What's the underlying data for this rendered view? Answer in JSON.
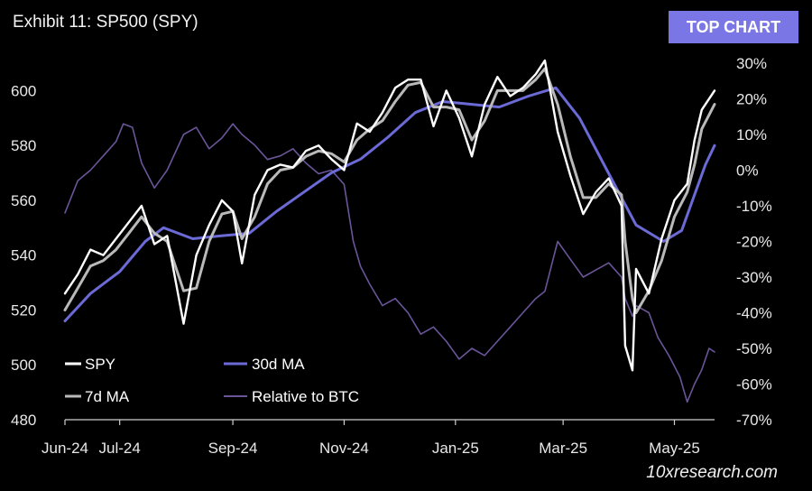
{
  "header": {
    "title": "Exhibit 11: SP500 (SPY)",
    "badge": "TOP CHART",
    "watermark": "10xresearch.com"
  },
  "colors": {
    "background": "#000000",
    "spy": "#ffffff",
    "ma7": "#b9b9b9",
    "ma30": "#6b6ad6",
    "relative_btc": "#6a5599",
    "badge": "#7b76e6"
  },
  "chart_data": {
    "type": "line",
    "x_tick_labels": [
      "Jun-24",
      "Jul-24",
      "Sep-24",
      "Nov-24",
      "Jan-25",
      "Mar-25",
      "May-25"
    ],
    "x_range": [
      "2024-06-01",
      "2025-05-23"
    ],
    "y_left": {
      "ticks": [
        "480",
        "500",
        "520",
        "540",
        "560",
        "580",
        "600"
      ],
      "range": [
        480,
        610
      ]
    },
    "y_right": {
      "ticks": [
        "30%",
        "20%",
        "10%",
        "0%",
        "-10%",
        "-20%",
        "-30%",
        "-40%",
        "-50%",
        "-60%",
        "-70%"
      ],
      "range": [
        -70,
        30
      ]
    },
    "legend": [
      "SPY",
      "30d MA",
      "7d MA",
      "Relative to BTC"
    ],
    "legend_position": "bottom-left",
    "grid": false,
    "series": [
      {
        "name": "SPY",
        "axis": "left",
        "points": [
          [
            "2024-06-01",
            526
          ],
          [
            "2024-06-08",
            533
          ],
          [
            "2024-06-15",
            542
          ],
          [
            "2024-06-22",
            540
          ],
          [
            "2024-06-29",
            546
          ],
          [
            "2024-07-06",
            552
          ],
          [
            "2024-07-13",
            558
          ],
          [
            "2024-07-20",
            544
          ],
          [
            "2024-07-27",
            547
          ],
          [
            "2024-08-05",
            515
          ],
          [
            "2024-08-12",
            540
          ],
          [
            "2024-08-19",
            551
          ],
          [
            "2024-08-26",
            560
          ],
          [
            "2024-09-01",
            556
          ],
          [
            "2024-09-06",
            537
          ],
          [
            "2024-09-13",
            562
          ],
          [
            "2024-09-20",
            571
          ],
          [
            "2024-09-27",
            573
          ],
          [
            "2024-10-04",
            572
          ],
          [
            "2024-10-11",
            578
          ],
          [
            "2024-10-18",
            580
          ],
          [
            "2024-10-25",
            575
          ],
          [
            "2024-11-01",
            571
          ],
          [
            "2024-11-08",
            588
          ],
          [
            "2024-11-15",
            585
          ],
          [
            "2024-11-22",
            592
          ],
          [
            "2024-11-29",
            601
          ],
          [
            "2024-12-06",
            604
          ],
          [
            "2024-12-13",
            604
          ],
          [
            "2024-12-20",
            587
          ],
          [
            "2024-12-27",
            600
          ],
          [
            "2025-01-03",
            590
          ],
          [
            "2025-01-10",
            576
          ],
          [
            "2025-01-17",
            595
          ],
          [
            "2025-01-24",
            605
          ],
          [
            "2025-01-31",
            598
          ],
          [
            "2025-02-07",
            601
          ],
          [
            "2025-02-14",
            606
          ],
          [
            "2025-02-19",
            611
          ],
          [
            "2025-02-26",
            585
          ],
          [
            "2025-03-05",
            569
          ],
          [
            "2025-03-12",
            555
          ],
          [
            "2025-03-19",
            563
          ],
          [
            "2025-03-26",
            568
          ],
          [
            "2025-04-02",
            558
          ],
          [
            "2025-04-04",
            507
          ],
          [
            "2025-04-08",
            498
          ],
          [
            "2025-04-10",
            535
          ],
          [
            "2025-04-17",
            526
          ],
          [
            "2025-04-24",
            546
          ],
          [
            "2025-05-01",
            560
          ],
          [
            "2025-05-08",
            566
          ],
          [
            "2025-05-12",
            582
          ],
          [
            "2025-05-16",
            593
          ],
          [
            "2025-05-23",
            600
          ]
        ]
      },
      {
        "name": "7d MA",
        "axis": "left",
        "points": [
          [
            "2024-06-01",
            520
          ],
          [
            "2024-06-08",
            528
          ],
          [
            "2024-06-15",
            536
          ],
          [
            "2024-06-22",
            538
          ],
          [
            "2024-06-29",
            542
          ],
          [
            "2024-07-06",
            548
          ],
          [
            "2024-07-13",
            554
          ],
          [
            "2024-07-20",
            548
          ],
          [
            "2024-07-27",
            545
          ],
          [
            "2024-08-05",
            527
          ],
          [
            "2024-08-12",
            528
          ],
          [
            "2024-08-19",
            545
          ],
          [
            "2024-08-26",
            555
          ],
          [
            "2024-09-01",
            556
          ],
          [
            "2024-09-06",
            546
          ],
          [
            "2024-09-13",
            554
          ],
          [
            "2024-09-20",
            566
          ],
          [
            "2024-09-27",
            571
          ],
          [
            "2024-10-04",
            572
          ],
          [
            "2024-10-11",
            576
          ],
          [
            "2024-10-18",
            578
          ],
          [
            "2024-10-25",
            577
          ],
          [
            "2024-11-01",
            574
          ],
          [
            "2024-11-08",
            582
          ],
          [
            "2024-11-15",
            586
          ],
          [
            "2024-11-22",
            589
          ],
          [
            "2024-11-29",
            596
          ],
          [
            "2024-12-06",
            602
          ],
          [
            "2024-12-13",
            603
          ],
          [
            "2024-12-20",
            594
          ],
          [
            "2024-12-27",
            594
          ],
          [
            "2025-01-03",
            593
          ],
          [
            "2025-01-10",
            582
          ],
          [
            "2025-01-17",
            589
          ],
          [
            "2025-01-24",
            600
          ],
          [
            "2025-01-31",
            600
          ],
          [
            "2025-02-07",
            600
          ],
          [
            "2025-02-14",
            604
          ],
          [
            "2025-02-19",
            608
          ],
          [
            "2025-02-26",
            595
          ],
          [
            "2025-03-05",
            576
          ],
          [
            "2025-03-12",
            561
          ],
          [
            "2025-03-19",
            561
          ],
          [
            "2025-03-26",
            566
          ],
          [
            "2025-04-02",
            562
          ],
          [
            "2025-04-04",
            545
          ],
          [
            "2025-04-08",
            524
          ],
          [
            "2025-04-10",
            519
          ],
          [
            "2025-04-17",
            527
          ],
          [
            "2025-04-24",
            538
          ],
          [
            "2025-05-01",
            554
          ],
          [
            "2025-05-08",
            563
          ],
          [
            "2025-05-12",
            573
          ],
          [
            "2025-05-16",
            586
          ],
          [
            "2025-05-23",
            595
          ]
        ]
      },
      {
        "name": "30d MA",
        "axis": "left",
        "points": [
          [
            "2024-06-01",
            516
          ],
          [
            "2024-06-15",
            526
          ],
          [
            "2024-07-01",
            534
          ],
          [
            "2024-07-15",
            545
          ],
          [
            "2024-07-25",
            550
          ],
          [
            "2024-08-10",
            546
          ],
          [
            "2024-08-25",
            547
          ],
          [
            "2024-09-10",
            548
          ],
          [
            "2024-09-25",
            556
          ],
          [
            "2024-10-10",
            563
          ],
          [
            "2024-10-25",
            570
          ],
          [
            "2024-11-10",
            575
          ],
          [
            "2024-11-25",
            583
          ],
          [
            "2024-12-10",
            592
          ],
          [
            "2024-12-25",
            596
          ],
          [
            "2025-01-10",
            595
          ],
          [
            "2025-01-25",
            594
          ],
          [
            "2025-02-10",
            598
          ],
          [
            "2025-02-25",
            601
          ],
          [
            "2025-03-10",
            590
          ],
          [
            "2025-03-25",
            571
          ],
          [
            "2025-04-10",
            551
          ],
          [
            "2025-04-25",
            545
          ],
          [
            "2025-05-05",
            549
          ],
          [
            "2025-05-12",
            562
          ],
          [
            "2025-05-18",
            573
          ],
          [
            "2025-05-23",
            580
          ]
        ]
      },
      {
        "name": "Relative to BTC",
        "axis": "right",
        "points": [
          [
            "2024-06-01",
            -12
          ],
          [
            "2024-06-08",
            -3
          ],
          [
            "2024-06-15",
            0
          ],
          [
            "2024-06-22",
            4
          ],
          [
            "2024-06-29",
            8
          ],
          [
            "2024-07-03",
            13
          ],
          [
            "2024-07-08",
            12
          ],
          [
            "2024-07-13",
            2
          ],
          [
            "2024-07-20",
            -5
          ],
          [
            "2024-07-27",
            0
          ],
          [
            "2024-08-05",
            10
          ],
          [
            "2024-08-12",
            12
          ],
          [
            "2024-08-19",
            6
          ],
          [
            "2024-08-26",
            9
          ],
          [
            "2024-09-01",
            13
          ],
          [
            "2024-09-06",
            10
          ],
          [
            "2024-09-13",
            7
          ],
          [
            "2024-09-20",
            3
          ],
          [
            "2024-09-27",
            4
          ],
          [
            "2024-10-04",
            6
          ],
          [
            "2024-10-11",
            2
          ],
          [
            "2024-10-18",
            -1
          ],
          [
            "2024-10-25",
            0
          ],
          [
            "2024-11-01",
            -4
          ],
          [
            "2024-11-06",
            -20
          ],
          [
            "2024-11-10",
            -27
          ],
          [
            "2024-11-15",
            -32
          ],
          [
            "2024-11-22",
            -38
          ],
          [
            "2024-11-29",
            -36
          ],
          [
            "2024-12-06",
            -40
          ],
          [
            "2024-12-13",
            -46
          ],
          [
            "2024-12-20",
            -44
          ],
          [
            "2024-12-27",
            -48
          ],
          [
            "2025-01-03",
            -53
          ],
          [
            "2025-01-10",
            -50
          ],
          [
            "2025-01-17",
            -52
          ],
          [
            "2025-01-24",
            -48
          ],
          [
            "2025-01-31",
            -44
          ],
          [
            "2025-02-07",
            -40
          ],
          [
            "2025-02-14",
            -36
          ],
          [
            "2025-02-19",
            -34
          ],
          [
            "2025-02-26",
            -20
          ],
          [
            "2025-03-05",
            -25
          ],
          [
            "2025-03-12",
            -30
          ],
          [
            "2025-03-19",
            -28
          ],
          [
            "2025-03-26",
            -26
          ],
          [
            "2025-04-02",
            -30
          ],
          [
            "2025-04-04",
            -36
          ],
          [
            "2025-04-08",
            -41
          ],
          [
            "2025-04-10",
            -38
          ],
          [
            "2025-04-17",
            -40
          ],
          [
            "2025-04-22",
            -47
          ],
          [
            "2025-04-28",
            -52
          ],
          [
            "2025-05-04",
            -58
          ],
          [
            "2025-05-08",
            -65
          ],
          [
            "2025-05-12",
            -60
          ],
          [
            "2025-05-16",
            -56
          ],
          [
            "2025-05-20",
            -50
          ],
          [
            "2025-05-23",
            -51
          ]
        ]
      }
    ]
  }
}
